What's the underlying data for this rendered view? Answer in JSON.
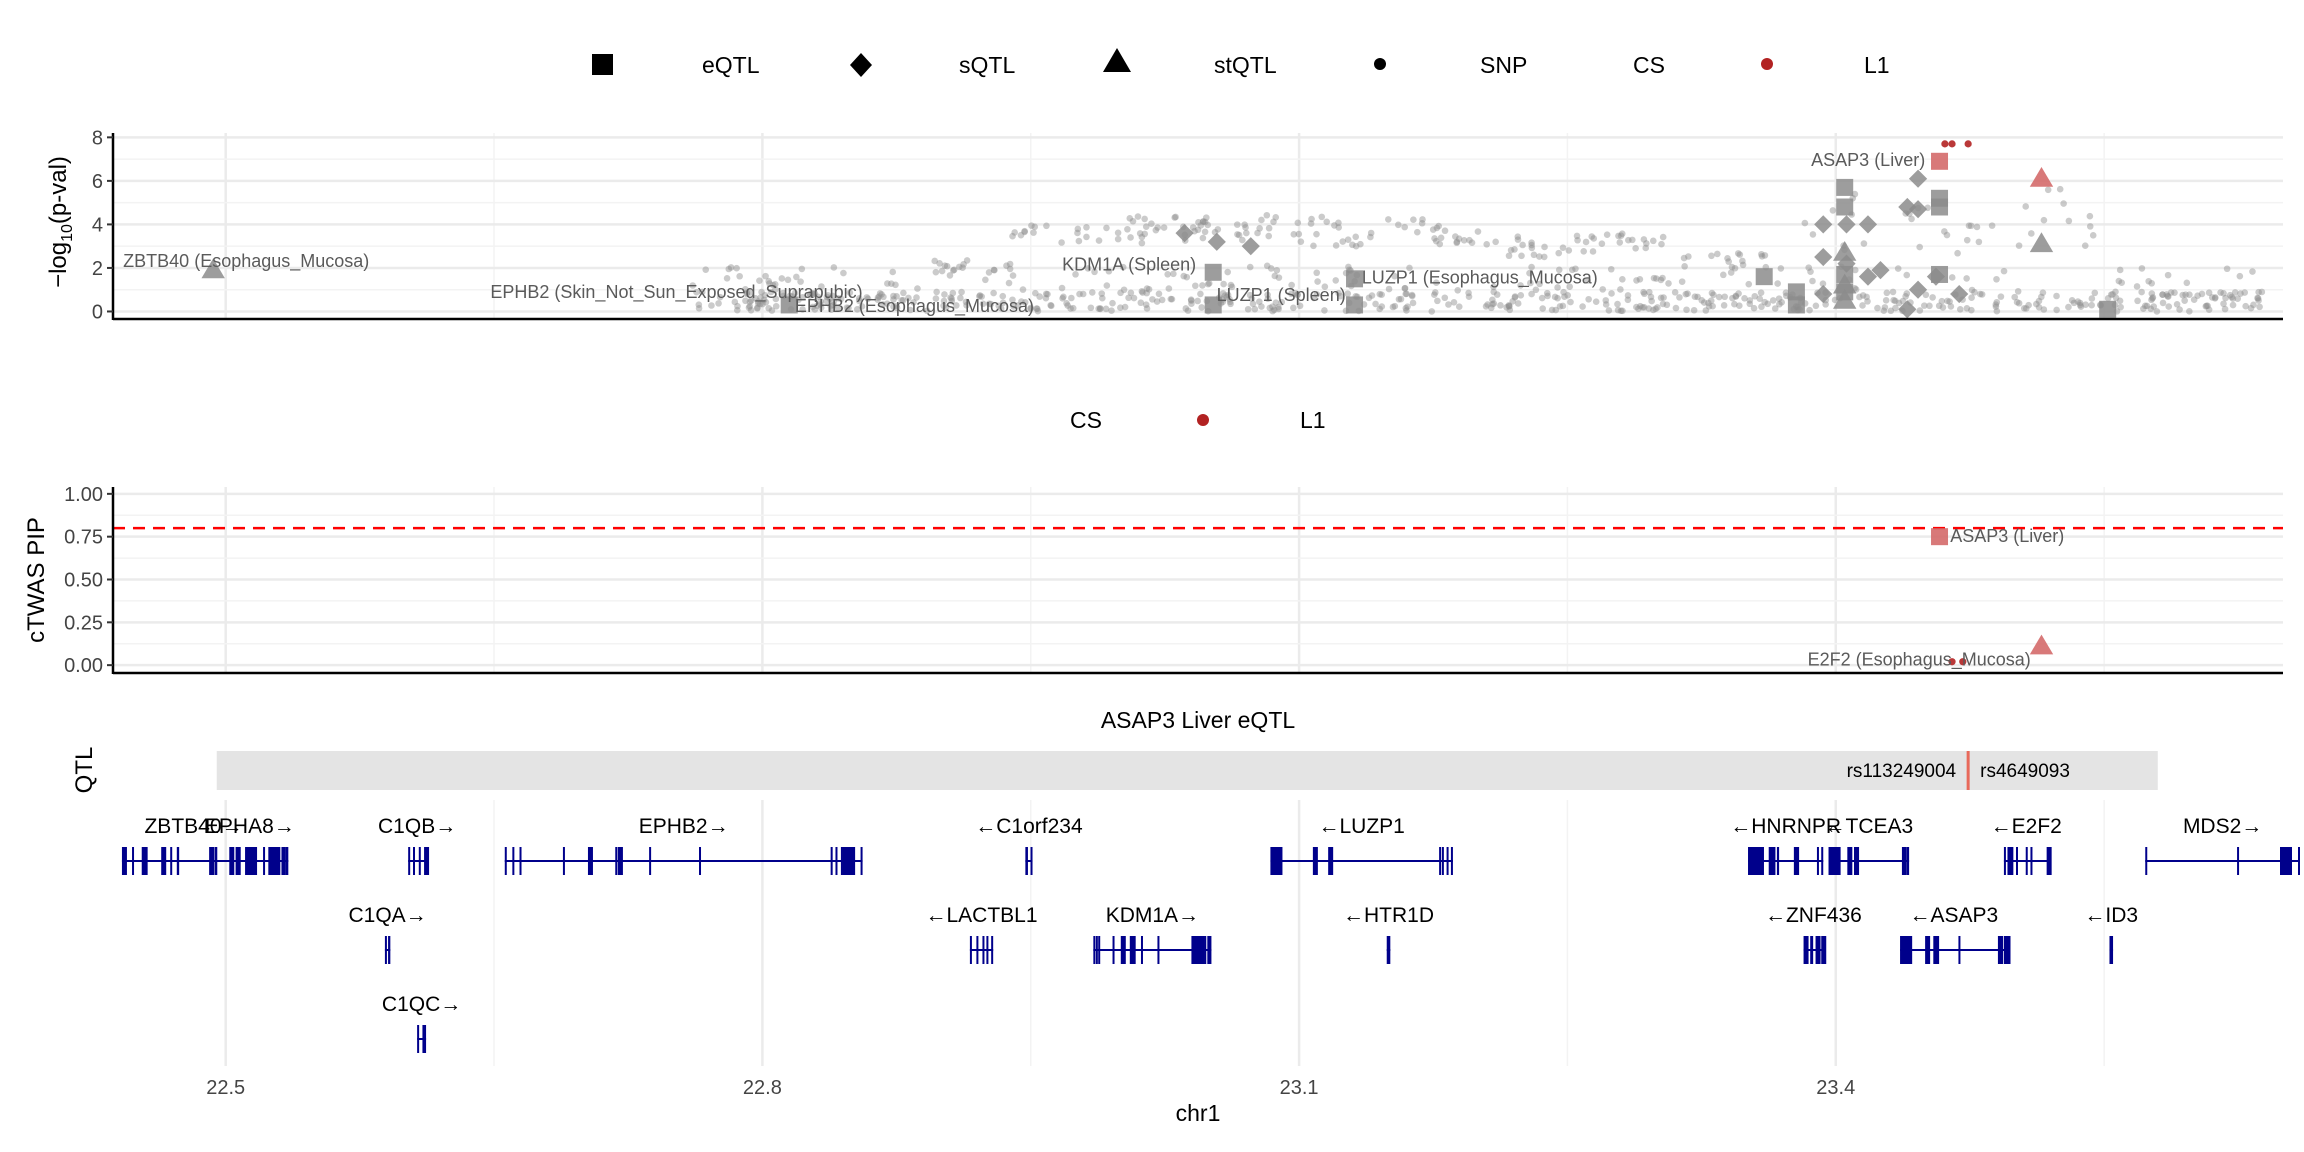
{
  "colors": {
    "snp_grey": "#8c8c8c",
    "cs_red": "#b22222",
    "cs_pink": "#d46a6a",
    "gene_navy": "#00008b",
    "threshold_red": "#ff0000",
    "grid": "#e6e6e6",
    "qtl_bar": "#e4e4e4",
    "label_grey": "#5a5a5a"
  },
  "legend_top": {
    "items": [
      {
        "label": "eQTL",
        "icon": "square-icon"
      },
      {
        "label": "sQTL",
        "icon": "diamond-icon"
      },
      {
        "label": "stQTL",
        "icon": "triangle-icon"
      },
      {
        "label": "SNP",
        "icon": "dot-icon"
      }
    ],
    "cs_title": "CS",
    "cs_items": [
      {
        "label": "L1",
        "color": "#b22222"
      }
    ]
  },
  "legend_mid": {
    "cs_title": "CS",
    "cs_items": [
      {
        "label": "L1",
        "color": "#b22222"
      }
    ]
  },
  "qtl_panel": {
    "title": "ASAP3 Liver eQTL",
    "ylabel": "QTL",
    "range": [
      22.495,
      23.58
    ],
    "marker_pos": 23.474,
    "snp_left": "rs113249004",
    "snp_right": "rs4649093"
  },
  "x_axis": {
    "label": "chr1",
    "ticks": [
      22.5,
      22.8,
      23.1,
      23.4
    ],
    "tick_labels": [
      "22.5",
      "22.8",
      "23.1",
      "23.4"
    ],
    "range": [
      22.437,
      23.65
    ]
  },
  "chart_data": [
    {
      "type": "scatter",
      "ylabel": "−log10(p-val)",
      "ylim": [
        -0.3,
        8.2
      ],
      "yticks": [
        0,
        2,
        4,
        6,
        8
      ],
      "grid": true,
      "legend_position": "top",
      "series": [
        {
          "name": "eQTL",
          "shape": "square",
          "points": [
            {
              "x": 22.815,
              "y": 0.3
            },
            {
              "x": 23.052,
              "y": 1.8
            },
            {
              "x": 23.052,
              "y": 0.3
            },
            {
              "x": 23.131,
              "y": 1.5
            },
            {
              "x": 23.131,
              "y": 0.3
            },
            {
              "x": 23.36,
              "y": 1.6
            },
            {
              "x": 23.378,
              "y": 0.9
            },
            {
              "x": 23.378,
              "y": 0.3
            },
            {
              "x": 23.405,
              "y": 5.7
            },
            {
              "x": 23.405,
              "y": 4.8
            },
            {
              "x": 23.405,
              "y": 1.7
            },
            {
              "x": 23.405,
              "y": 0.9
            },
            {
              "x": 23.458,
              "y": 5.2
            },
            {
              "x": 23.458,
              "y": 4.8
            },
            {
              "x": 23.458,
              "y": 1.7
            },
            {
              "x": 23.552,
              "y": 0.1
            }
          ]
        },
        {
          "name": "sQTL",
          "shape": "diamond",
          "points": [
            {
              "x": 23.036,
              "y": 3.6
            },
            {
              "x": 23.054,
              "y": 3.2
            },
            {
              "x": 23.073,
              "y": 3.0
            },
            {
              "x": 23.393,
              "y": 4.0
            },
            {
              "x": 23.406,
              "y": 4.0
            },
            {
              "x": 23.418,
              "y": 4.0
            },
            {
              "x": 23.44,
              "y": 4.8
            },
            {
              "x": 23.446,
              "y": 6.1
            },
            {
              "x": 23.446,
              "y": 4.7
            },
            {
              "x": 23.393,
              "y": 2.5
            },
            {
              "x": 23.406,
              "y": 2.2
            },
            {
              "x": 23.425,
              "y": 1.9
            },
            {
              "x": 23.446,
              "y": 1.0
            },
            {
              "x": 23.456,
              "y": 1.6
            },
            {
              "x": 23.469,
              "y": 0.8
            },
            {
              "x": 23.44,
              "y": 0.1
            },
            {
              "x": 23.393,
              "y": 0.8
            },
            {
              "x": 23.418,
              "y": 1.6
            }
          ]
        },
        {
          "name": "stQTL",
          "shape": "triangle",
          "points": [
            {
              "x": 22.493,
              "y": 1.9
            },
            {
              "x": 23.405,
              "y": 2.7
            },
            {
              "x": 23.405,
              "y": 1.2
            },
            {
              "x": 23.405,
              "y": 0.5
            },
            {
              "x": 23.515,
              "y": 3.1
            }
          ]
        },
        {
          "name": "CS L1",
          "shape": "mixed",
          "points": [
            {
              "x": 23.458,
              "y": 6.9,
              "shape": "square"
            },
            {
              "x": 23.515,
              "y": 6.1,
              "shape": "triangle"
            },
            {
              "x": 23.461,
              "y": 7.7,
              "shape": "dot"
            },
            {
              "x": 23.465,
              "y": 7.7,
              "shape": "dot"
            },
            {
              "x": 23.474,
              "y": 7.7,
              "shape": "dot"
            }
          ]
        }
      ],
      "snp_cloud": {
        "n": 900,
        "x_range": [
          22.76,
          23.64
        ],
        "note": "background SNP points"
      },
      "annotations": [
        {
          "text": "ZBTB40 (Esophagus_Mucosa)",
          "x": 22.493,
          "y": 1.9,
          "anchor": "start",
          "dx": -90,
          "dy": -10
        },
        {
          "text": "EPHB2 (Skin_Not_Sun_Exposed_Suprapubic)",
          "x": 22.752,
          "y": 0.95,
          "anchor": "middle",
          "dx": 0,
          "dy": 0
        },
        {
          "text": "EPHB2 (Esophagus_Mucosa)",
          "x": 22.885,
          "y": 0.3,
          "anchor": "middle",
          "dx": 0,
          "dy": 0
        },
        {
          "text": "KDM1A (Spleen)",
          "x": 23.005,
          "y": 2.2,
          "anchor": "middle",
          "dx": 0,
          "dy": 0
        },
        {
          "text": "LUZP1 (Spleen)",
          "x": 23.09,
          "y": 0.8,
          "anchor": "middle",
          "dx": 0,
          "dy": 0
        },
        {
          "text": "LUZP1 (Esophagus_Mucosa)",
          "x": 23.135,
          "y": 1.6,
          "anchor": "start",
          "dx": 0,
          "dy": 0
        },
        {
          "text": "ASAP3 (Liver)",
          "x": 23.45,
          "y": 7.0,
          "anchor": "end",
          "dx": 0,
          "dy": 0
        }
      ]
    },
    {
      "type": "scatter",
      "ylabel": "cTWAS PIP",
      "ylim": [
        -0.04,
        1.04
      ],
      "yticks": [
        0,
        0.25,
        0.5,
        0.75,
        1
      ],
      "ytick_labels": [
        "0.00",
        "0.25",
        "0.50",
        "0.75",
        "1.00"
      ],
      "threshold": 0.8,
      "grid": true,
      "legend_position": "top",
      "series": [
        {
          "name": "CS L1",
          "points": [
            {
              "x": 23.458,
              "y": 0.75,
              "shape": "square"
            },
            {
              "x": 23.515,
              "y": 0.11,
              "shape": "triangle"
            },
            {
              "x": 23.465,
              "y": 0.02,
              "shape": "dot"
            },
            {
              "x": 23.471,
              "y": 0.02,
              "shape": "dot"
            }
          ]
        }
      ],
      "annotations": [
        {
          "text": "ASAP3 (Liver)",
          "x": 23.464,
          "y": 0.76,
          "anchor": "start"
        },
        {
          "text": "E2F2 (Esophagus_Mucosa)",
          "x": 23.509,
          "y": 0.04,
          "anchor": "end"
        }
      ]
    }
  ],
  "genes": [
    {
      "name": "ZBTB40",
      "dir": "right",
      "start": 22.442,
      "end": 22.522,
      "row": 0,
      "exons": 14
    },
    {
      "name": "EPHA8",
      "dir": "right",
      "start": 22.492,
      "end": 22.535,
      "row": 0,
      "exons": 10
    },
    {
      "name": "C1QB",
      "dir": "right",
      "start": 22.602,
      "end": 22.612,
      "row": 0,
      "exons": 4
    },
    {
      "name": "EPHB2",
      "dir": "right",
      "start": 22.656,
      "end": 22.856,
      "row": 0,
      "exons": 16
    },
    {
      "name": "C1orf234",
      "dir": "left",
      "start": 22.947,
      "end": 22.951,
      "row": 0,
      "exons": 3
    },
    {
      "name": "LUZP1",
      "dir": "left",
      "start": 23.084,
      "end": 23.186,
      "row": 0,
      "exons": 8
    },
    {
      "name": "HNRNPR",
      "dir": "left",
      "start": 23.351,
      "end": 23.393,
      "row": 0,
      "exons": 12
    },
    {
      "name": "TCEA3",
      "dir": "left",
      "start": 23.396,
      "end": 23.441,
      "row": 0,
      "exons": 10
    },
    {
      "name": "E2F2",
      "dir": "left",
      "start": 23.494,
      "end": 23.519,
      "row": 0,
      "exons": 7
    },
    {
      "name": "MDS2",
      "dir": "right",
      "start": 23.573,
      "end": 23.66,
      "row": 0,
      "exons": 3
    },
    {
      "name": "C1QA",
      "dir": "right",
      "start": 22.589,
      "end": 22.592,
      "row": 1,
      "exons": 3
    },
    {
      "name": "LACTBL1",
      "dir": "left",
      "start": 22.916,
      "end": 22.929,
      "row": 1,
      "exons": 5
    },
    {
      "name": "KDM1A",
      "dir": "right",
      "start": 22.985,
      "end": 23.051,
      "row": 1,
      "exons": 16
    },
    {
      "name": "HTR1D",
      "dir": "left",
      "start": 23.149,
      "end": 23.151,
      "row": 1,
      "exons": 2
    },
    {
      "name": "ZNF436",
      "dir": "left",
      "start": 23.382,
      "end": 23.393,
      "row": 1,
      "exons": 5
    },
    {
      "name": "ASAP3",
      "dir": "left",
      "start": 23.436,
      "end": 23.496,
      "row": 1,
      "exons": 12
    },
    {
      "name": "ID3",
      "dir": "left",
      "start": 23.553,
      "end": 23.555,
      "row": 1,
      "exons": 2
    },
    {
      "name": "C1QC",
      "dir": "right",
      "start": 22.607,
      "end": 22.612,
      "row": 2,
      "exons": 3
    }
  ]
}
